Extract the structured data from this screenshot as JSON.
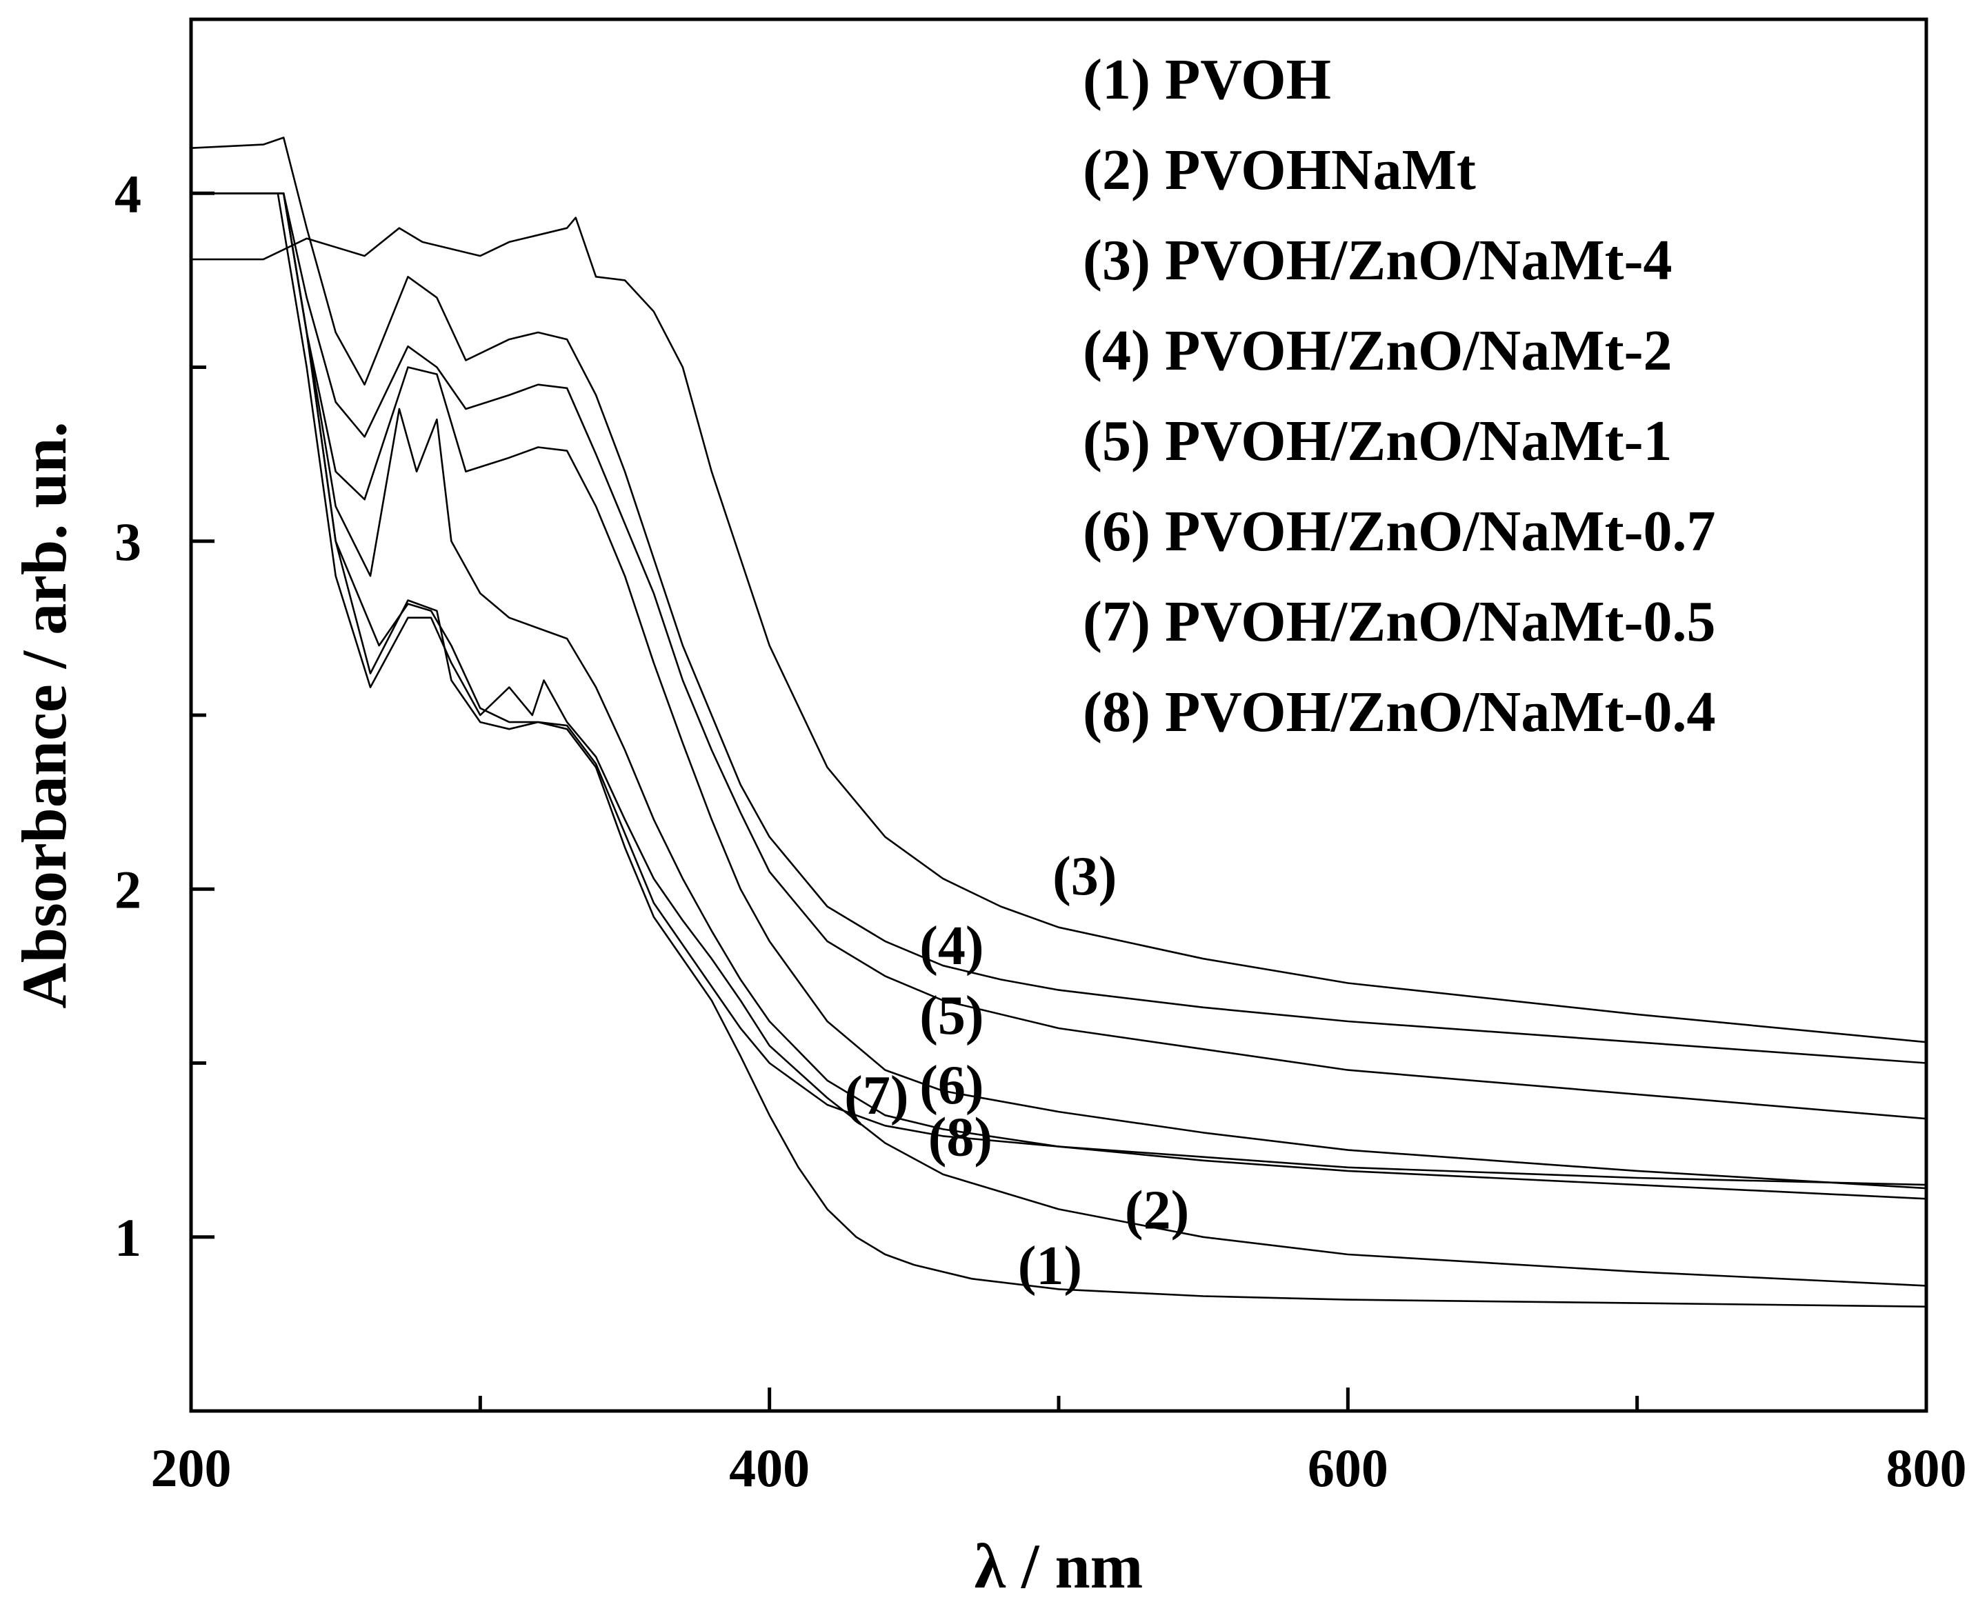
{
  "chart_data": {
    "type": "line",
    "title": "",
    "xlabel": "λ / nm",
    "ylabel": "Absorbance / arb. un.",
    "xlim": [
      200,
      800
    ],
    "ylim": [
      0.5,
      4.5
    ],
    "x_ticks": [
      200,
      400,
      600,
      800
    ],
    "x_tick_labels": [
      "200",
      "400",
      "600",
      "800"
    ],
    "y_ticks": [
      1,
      2,
      3,
      4
    ],
    "y_tick_labels": [
      "1",
      "2",
      "3",
      "4"
    ],
    "grid": false,
    "legend_position": "top-right",
    "legend": [
      "(1) PVOH",
      "(2) PVOHNaMt",
      "(3) PVOH/ZnO/NaMt-4",
      "(4) PVOH/ZnO/NaMt-2",
      "(5) PVOH/ZnO/NaMt-1",
      "(6) PVOH/ZnO/NaMt-0.7",
      "(7) PVOH/ZnO/NaMt-0.5",
      "(8) PVOH/ZnO/NaMt-0.4"
    ],
    "series": [
      {
        "id": "1",
        "name": "PVOH",
        "label": "(1)",
        "label_at": [
          497,
          0.92
        ],
        "x": [
          200,
          225,
          232,
          240,
          250,
          265,
          275,
          283,
          290,
          300,
          310,
          320,
          330,
          340,
          350,
          360,
          370,
          380,
          390,
          400,
          410,
          420,
          430,
          440,
          450,
          470,
          500,
          550,
          600,
          700,
          800
        ],
        "y": [
          4.0,
          4.0,
          4.0,
          3.6,
          3.0,
          2.7,
          2.82,
          2.8,
          2.7,
          2.52,
          2.48,
          2.48,
          2.46,
          2.35,
          2.12,
          1.92,
          1.8,
          1.68,
          1.52,
          1.35,
          1.2,
          1.08,
          1.0,
          0.95,
          0.92,
          0.88,
          0.85,
          0.83,
          0.82,
          0.81,
          0.8
        ]
      },
      {
        "id": "2",
        "name": "PVOHNaMt",
        "label": "(2)",
        "label_at": [
          534,
          1.08
        ],
        "x": [
          200,
          224,
          230,
          240,
          250,
          262,
          275,
          283,
          290,
          300,
          310,
          318,
          322,
          330,
          340,
          350,
          360,
          370,
          380,
          390,
          400,
          420,
          440,
          460,
          500,
          550,
          600,
          700,
          800
        ],
        "y": [
          4.0,
          4.0,
          4.0,
          3.5,
          2.9,
          2.58,
          2.78,
          2.78,
          2.65,
          2.5,
          2.58,
          2.5,
          2.6,
          2.48,
          2.38,
          2.2,
          2.03,
          1.91,
          1.8,
          1.68,
          1.55,
          1.4,
          1.27,
          1.18,
          1.08,
          1.0,
          0.95,
          0.9,
          0.86
        ]
      },
      {
        "id": "3",
        "name": "PVOH/ZnO/NaMt-4",
        "label": "(3)",
        "label_at": [
          509,
          2.04
        ],
        "x": [
          200,
          225,
          240,
          260,
          272,
          280,
          300,
          310,
          320,
          330,
          333,
          340,
          350,
          360,
          370,
          380,
          390,
          400,
          420,
          440,
          460,
          480,
          500,
          550,
          600,
          700,
          800
        ],
        "y": [
          3.81,
          3.81,
          3.87,
          3.82,
          3.9,
          3.86,
          3.82,
          3.86,
          3.88,
          3.9,
          3.93,
          3.76,
          3.75,
          3.66,
          3.5,
          3.2,
          2.95,
          2.7,
          2.35,
          2.15,
          2.03,
          1.95,
          1.89,
          1.8,
          1.73,
          1.64,
          1.56
        ]
      },
      {
        "id": "4",
        "name": "PVOH/ZnO/NaMt-2",
        "label": "(4)",
        "label_at": [
          463,
          1.84
        ],
        "x": [
          200,
          225,
          232,
          240,
          250,
          260,
          275,
          285,
          295,
          310,
          320,
          330,
          340,
          350,
          360,
          370,
          380,
          390,
          400,
          420,
          440,
          460,
          480,
          500,
          550,
          600,
          700,
          800
        ],
        "y": [
          4.13,
          4.14,
          4.16,
          3.9,
          3.6,
          3.45,
          3.76,
          3.7,
          3.52,
          3.58,
          3.6,
          3.58,
          3.42,
          3.2,
          2.95,
          2.7,
          2.5,
          2.3,
          2.15,
          1.95,
          1.85,
          1.78,
          1.74,
          1.71,
          1.66,
          1.62,
          1.56,
          1.5
        ]
      },
      {
        "id": "5",
        "name": "PVOH/ZnO/NaMt-1",
        "label": "(5)",
        "label_at": [
          463,
          1.64
        ],
        "x": [
          200,
          225,
          232,
          240,
          250,
          260,
          275,
          285,
          295,
          310,
          320,
          330,
          340,
          350,
          360,
          370,
          380,
          390,
          400,
          420,
          440,
          460,
          500,
          550,
          600,
          700,
          800
        ],
        "y": [
          4.0,
          4.0,
          4.0,
          3.7,
          3.4,
          3.3,
          3.56,
          3.5,
          3.38,
          3.42,
          3.45,
          3.44,
          3.25,
          3.05,
          2.85,
          2.6,
          2.4,
          2.22,
          2.05,
          1.85,
          1.75,
          1.68,
          1.6,
          1.54,
          1.48,
          1.41,
          1.34
        ]
      },
      {
        "id": "6",
        "name": "PVOH/ZnO/NaMt-0.7",
        "label": "(6)",
        "label_at": [
          463,
          1.44
        ],
        "x": [
          200,
          225,
          232,
          240,
          250,
          260,
          275,
          285,
          295,
          310,
          320,
          330,
          340,
          350,
          360,
          370,
          380,
          390,
          400,
          420,
          440,
          460,
          500,
          550,
          600,
          700,
          800
        ],
        "y": [
          4.0,
          4.0,
          4.0,
          3.6,
          3.2,
          3.12,
          3.5,
          3.48,
          3.2,
          3.24,
          3.27,
          3.26,
          3.1,
          2.9,
          2.65,
          2.42,
          2.2,
          2.0,
          1.85,
          1.62,
          1.48,
          1.42,
          1.36,
          1.3,
          1.25,
          1.19,
          1.14
        ]
      },
      {
        "id": "7",
        "name": "PVOH/ZnO/NaMt-0.5",
        "label": "(7)",
        "label_at": [
          437,
          1.41
        ],
        "x": [
          200,
          225,
          232,
          240,
          250,
          262,
          272,
          278,
          285,
          290,
          300,
          310,
          320,
          330,
          340,
          350,
          360,
          370,
          380,
          390,
          400,
          420,
          440,
          460,
          500,
          550,
          600,
          700,
          800
        ],
        "y": [
          4.0,
          4.0,
          4.0,
          3.6,
          3.1,
          2.9,
          3.38,
          3.2,
          3.35,
          3.0,
          2.85,
          2.78,
          2.75,
          2.72,
          2.58,
          2.4,
          2.2,
          2.03,
          1.88,
          1.74,
          1.62,
          1.45,
          1.35,
          1.31,
          1.26,
          1.22,
          1.19,
          1.15,
          1.11
        ]
      },
      {
        "id": "8",
        "name": "PVOH/ZnO/NaMt-0.4",
        "label": "(8)",
        "label_at": [
          466,
          1.29
        ],
        "x": [
          200,
          225,
          232,
          240,
          250,
          262,
          275,
          285,
          290,
          300,
          310,
          320,
          330,
          340,
          350,
          360,
          370,
          380,
          390,
          400,
          420,
          440,
          460,
          500,
          550,
          600,
          700,
          800
        ],
        "y": [
          4.0,
          4.0,
          4.0,
          3.6,
          3.0,
          2.62,
          2.83,
          2.8,
          2.6,
          2.48,
          2.46,
          2.48,
          2.47,
          2.36,
          2.16,
          1.96,
          1.84,
          1.72,
          1.6,
          1.5,
          1.38,
          1.32,
          1.29,
          1.26,
          1.23,
          1.2,
          1.17,
          1.15
        ]
      }
    ]
  }
}
